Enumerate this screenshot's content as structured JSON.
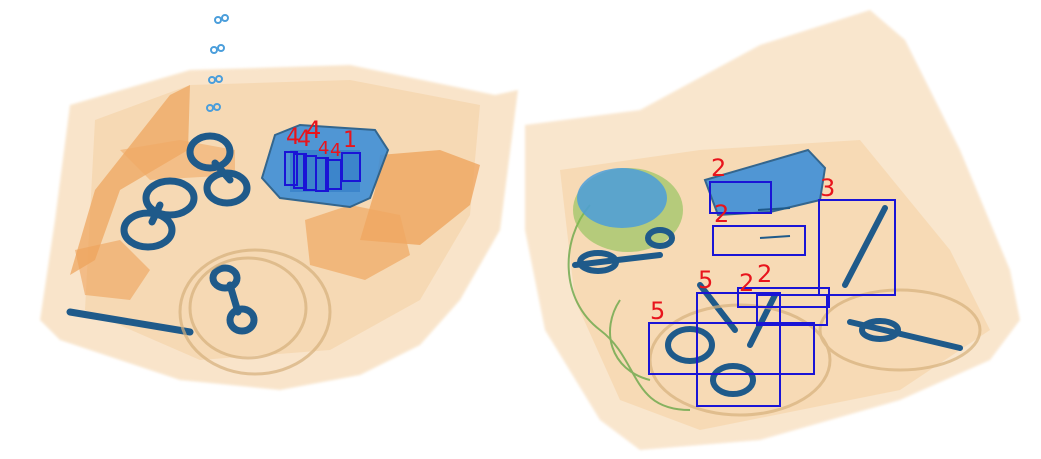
{
  "colors": {
    "background": "#ffffff",
    "organic": "#f3c999",
    "organic_dark": "#e79a4f",
    "metal": "#1f5a8a",
    "plastic": "#4b9edb",
    "green": "#7fbf4a",
    "box_stroke": "#1a14d6",
    "label_text": "#e8141c"
  },
  "annotations": [
    {
      "label": "4",
      "tray": "left"
    },
    {
      "label": "4",
      "tray": "left"
    },
    {
      "label": "4",
      "tray": "left"
    },
    {
      "label": "4",
      "tray": "left"
    },
    {
      "label": "4",
      "tray": "left"
    },
    {
      "label": "1",
      "tray": "left"
    },
    {
      "label": "2",
      "tray": "right"
    },
    {
      "label": "2",
      "tray": "right"
    },
    {
      "label": "3",
      "tray": "right"
    },
    {
      "label": "5",
      "tray": "right"
    },
    {
      "label": "2",
      "tray": "right"
    },
    {
      "label": "2",
      "tray": "right"
    },
    {
      "label": "5",
      "tray": "right"
    }
  ]
}
